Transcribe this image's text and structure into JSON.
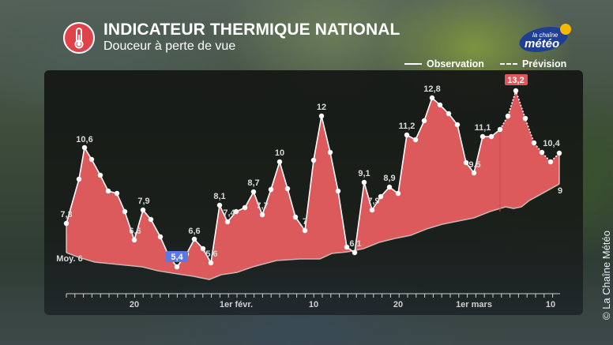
{
  "header": {
    "title": "INDICATEUR THERMIQUE NATIONAL",
    "subtitle": "Douceur à perte de vue",
    "icon": "thermometer-icon",
    "logo_top": "la chaîne",
    "logo_bottom": "météo"
  },
  "legend": {
    "observation": "Observation",
    "forecast": "Prévision"
  },
  "copyright": "© La Chaîne Météo",
  "colors": {
    "area_fill": "#dc5a5c",
    "line": "#ffffff",
    "min_badge": "#5b79e6",
    "max_badge": "#e0575b",
    "normal_line": "#c8b4b0",
    "title_icon_bg": "#e0424a"
  },
  "chart_data": {
    "type": "area",
    "title": "INDICATEUR THERMIQUE NATIONAL",
    "subtitle": "Douceur à perte de vue",
    "xlabel": "",
    "ylabel": "",
    "x_tick_labels": [
      "20",
      "1er févr.",
      "10",
      "20",
      "1er mars",
      "10"
    ],
    "legend": [
      "Observation",
      "Prévision"
    ],
    "legend_position": "top-right",
    "grid": false,
    "series": [
      {
        "name": "Indicateur thermique (Observation)",
        "values": [
          7.3,
          9.3,
          10.6,
          10.0,
          9.4,
          8.7,
          8.6,
          7.8,
          6.6,
          7.9,
          7.5,
          6.7,
          5.8,
          5.4,
          5.9,
          6.6,
          6.2,
          5.6,
          8.1,
          7.4,
          7.8,
          8.0,
          8.7,
          7.7,
          8.8,
          10.0,
          8.8,
          7.5,
          7.0,
          10.0,
          12.0,
          10.4,
          8.6,
          6.2,
          6.1,
          9.1,
          7.9,
          8.4,
          8.9,
          8.6,
          11.2,
          10.9,
          11.8,
          12.8,
          12.5,
          12.1,
          11.6,
          9.9,
          9.5,
          11.1,
          11.1,
          11.4
        ]
      },
      {
        "name": "Indicateur thermique (Prévision)",
        "values": [
          11.4,
          12.0,
          13.2,
          11.9,
          10.8,
          10.4,
          10.0,
          10.4
        ]
      },
      {
        "name": "Moyenne (normale)",
        "start_label": "Moy. 6",
        "end_label": "9",
        "values": [
          6.0,
          5.6,
          5.4,
          5.2,
          5.0,
          4.8,
          4.6,
          4.9,
          5.3,
          5.5,
          5.5,
          5.9,
          6.3,
          6.6,
          6.8,
          7.3,
          7.6,
          7.8,
          8.2,
          8.0,
          9.0
        ]
      }
    ],
    "annotations": [
      {
        "label": "7,3",
        "kind": "value"
      },
      {
        "label": "10,6",
        "kind": "value"
      },
      {
        "label": "7,9",
        "kind": "value"
      },
      {
        "label": "6,6",
        "kind": "value"
      },
      {
        "label": "5,4",
        "kind": "min"
      },
      {
        "label": "6,6",
        "kind": "value"
      },
      {
        "label": "5,6",
        "kind": "value"
      },
      {
        "label": "8,1",
        "kind": "value"
      },
      {
        "label": "7,4",
        "kind": "value"
      },
      {
        "label": "8,7",
        "kind": "value"
      },
      {
        "label": "7,7",
        "kind": "value"
      },
      {
        "label": "10",
        "kind": "value"
      },
      {
        "label": "7",
        "kind": "value"
      },
      {
        "label": "12",
        "kind": "value"
      },
      {
        "label": "6,1",
        "kind": "value"
      },
      {
        "label": "9,1",
        "kind": "value"
      },
      {
        "label": "7,9",
        "kind": "value"
      },
      {
        "label": "8,9",
        "kind": "value"
      },
      {
        "label": "11,2",
        "kind": "value"
      },
      {
        "label": "12,8",
        "kind": "value"
      },
      {
        "label": "9,5",
        "kind": "value"
      },
      {
        "label": "11,1",
        "kind": "value"
      },
      {
        "label": "13,2",
        "kind": "max"
      },
      {
        "label": "10,4",
        "kind": "value"
      },
      {
        "label": "Moy. 6",
        "kind": "normal"
      },
      {
        "label": "9",
        "kind": "normal"
      }
    ],
    "ylim": [
      4.5,
      13.5
    ]
  }
}
